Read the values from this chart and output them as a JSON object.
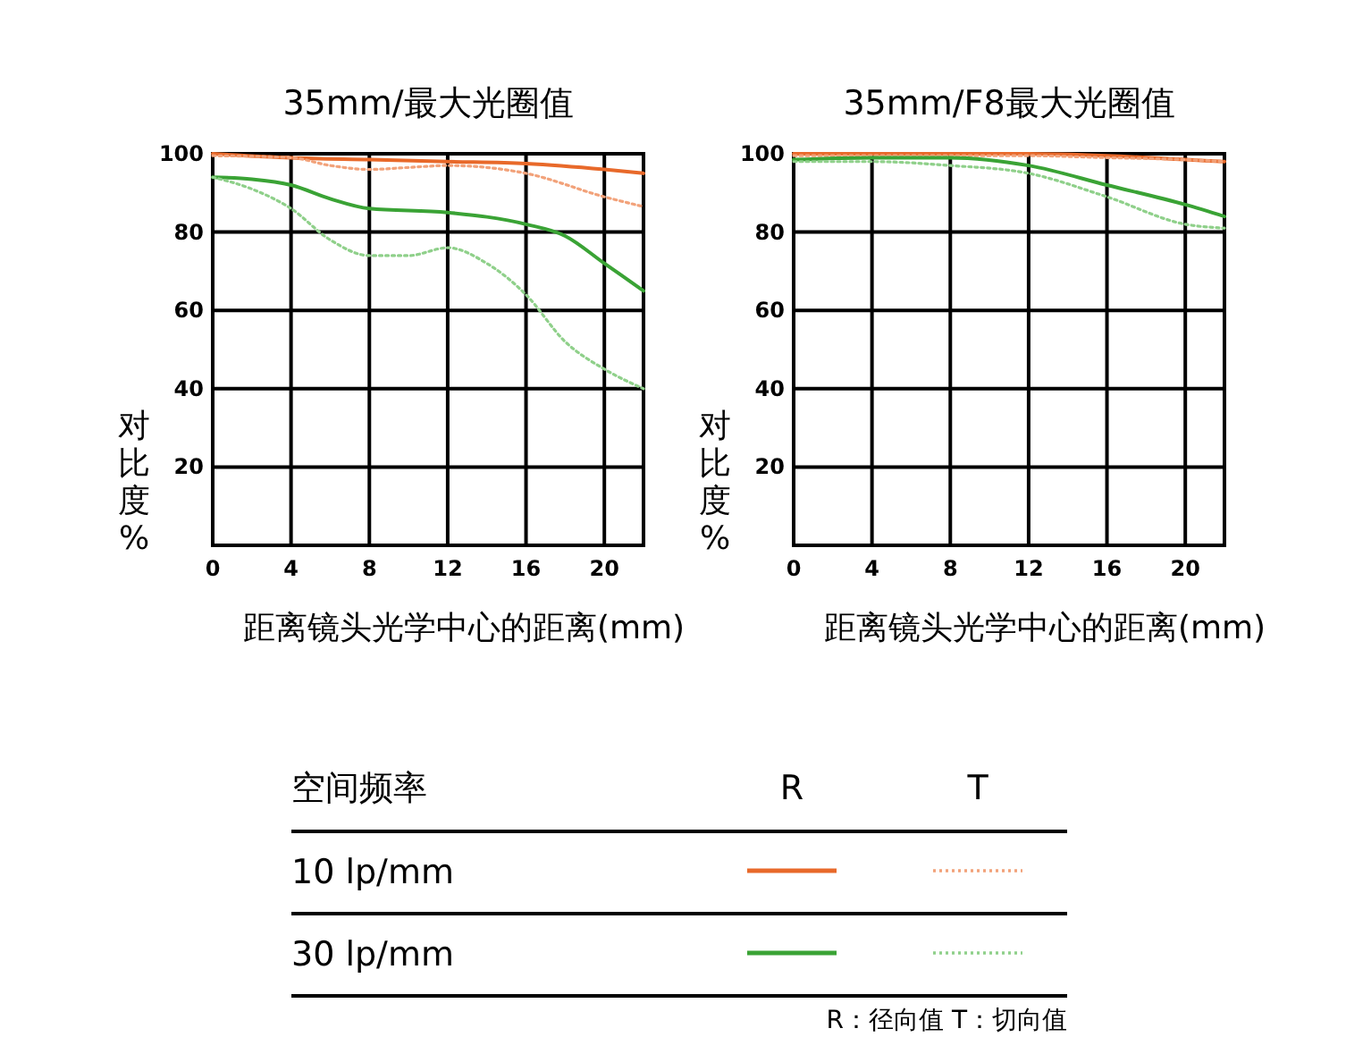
{
  "chart_data": [
    {
      "type": "line",
      "title": "35mm/最大光圈值",
      "xlabel": "距离镜头光学中心的距离(mm)",
      "ylabel": "对比度%",
      "grid": true,
      "xlim": [
        0,
        22
      ],
      "xticks": [
        0,
        4,
        8,
        12,
        16,
        20
      ],
      "ylim": [
        0,
        100
      ],
      "yticks": [
        20,
        40,
        60,
        80,
        100
      ],
      "series": [
        {
          "color": "#e8692a",
          "line_style": "solid",
          "x": [
            0,
            4,
            8,
            12,
            16,
            20,
            22
          ],
          "values": [
            100,
            99,
            98.5,
            98,
            97.5,
            96,
            95
          ]
        },
        {
          "color": "#f2a27a",
          "line_style": "dotted",
          "x": [
            0,
            4,
            6,
            8,
            10,
            12,
            16,
            20,
            22
          ],
          "values": [
            99.5,
            99,
            97,
            96,
            96.5,
            97,
            95,
            89,
            86.5
          ]
        },
        {
          "color": "#3aa335",
          "line_style": "solid",
          "x": [
            0,
            2,
            4,
            6,
            8,
            12,
            16,
            18,
            20,
            22
          ],
          "values": [
            94,
            93.5,
            92,
            88.5,
            86,
            85,
            82,
            79,
            72,
            65
          ]
        },
        {
          "color": "#8fd08a",
          "line_style": "dotted",
          "x": [
            0,
            2,
            4,
            6,
            8,
            10,
            12,
            14,
            16,
            18,
            20,
            22
          ],
          "values": [
            94,
            91,
            86,
            78,
            74,
            74,
            76,
            72,
            64,
            52,
            45,
            40
          ]
        }
      ]
    },
    {
      "type": "line",
      "title": "35mm/F8最大光圈值",
      "xlabel": "距离镜头光学中心的距离(mm)",
      "ylabel": "对比度%",
      "grid": true,
      "xlim": [
        0,
        22
      ],
      "xticks": [
        0,
        4,
        8,
        12,
        16,
        20
      ],
      "ylim": [
        0,
        100
      ],
      "yticks": [
        20,
        40,
        60,
        80,
        100
      ],
      "series": [
        {
          "color": "#e8692a",
          "line_style": "solid",
          "x": [
            0,
            4,
            8,
            12,
            16,
            20,
            22
          ],
          "values": [
            100,
            100,
            100,
            100,
            99.5,
            98.5,
            98
          ]
        },
        {
          "color": "#f2a27a",
          "line_style": "dotted",
          "x": [
            0,
            4,
            8,
            12,
            16,
            20,
            22
          ],
          "values": [
            99.5,
            99.5,
            99.5,
            99.5,
            99,
            98.5,
            98
          ]
        },
        {
          "color": "#3aa335",
          "line_style": "solid",
          "x": [
            0,
            4,
            8,
            12,
            16,
            20,
            22
          ],
          "values": [
            98.5,
            99,
            99,
            97,
            92,
            87,
            84
          ]
        },
        {
          "color": "#8fd08a",
          "line_style": "dotted",
          "x": [
            0,
            4,
            8,
            12,
            16,
            20,
            22
          ],
          "values": [
            98,
            98,
            97,
            95,
            89,
            82,
            81
          ]
        }
      ]
    },
    {
      "type": "other",
      "annotations": [
        "空间频率",
        "R",
        "T",
        "10 lp/mm",
        "30 lp/mm",
        "R：径向值  T：切向值"
      ]
    }
  ]
}
